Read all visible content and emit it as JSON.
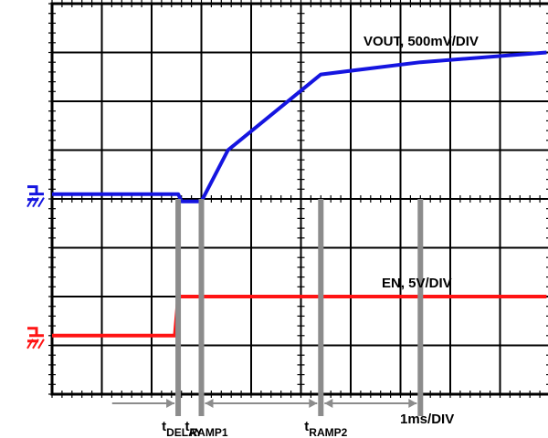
{
  "chart_data": {
    "type": "line",
    "grid": true,
    "divisions": {
      "x": 10,
      "y": 8
    },
    "x_scale_label": "1ms/DIV",
    "x_range_div": [
      0,
      10
    ],
    "y_range_div": [
      0,
      8
    ],
    "series": [
      {
        "name": "VOUT, 500mV/DIV",
        "color": "#1515e0",
        "ground_div": 4.1,
        "points": [
          [
            0,
            4.1
          ],
          [
            3.8,
            4.1
          ],
          [
            3.9,
            3.95
          ],
          [
            4.5,
            3.95
          ],
          [
            5.3,
            5.0
          ],
          [
            8.1,
            6.55
          ],
          [
            11.1,
            6.8
          ],
          [
            14.9,
            7.0
          ]
        ]
      },
      {
        "name": "EN, 5V/DIV",
        "color": "#ff1414",
        "ground_div": 1.2,
        "points": [
          [
            0,
            1.2
          ],
          [
            3.7,
            1.2
          ],
          [
            3.8,
            2.0
          ],
          [
            14.9,
            2.0
          ]
        ]
      }
    ],
    "markers": [
      {
        "label_main": "t",
        "label_sub": "DELAY",
        "x_div": 3.8
      },
      {
        "label_main": "t",
        "label_sub": "RAMP1",
        "x_div": 4.5
      },
      {
        "label_main": "t",
        "label_sub": "RAMP2",
        "x_div": 8.1
      },
      {
        "label_main": "",
        "label_sub": "",
        "x_div": 11.1
      }
    ],
    "intervals": [
      {
        "from_div": 1.7,
        "to_div": 3.8
      },
      {
        "from_div": 4.5,
        "to_div": 8.1
      },
      {
        "from_div": 8.1,
        "to_div": 11.1
      }
    ]
  }
}
